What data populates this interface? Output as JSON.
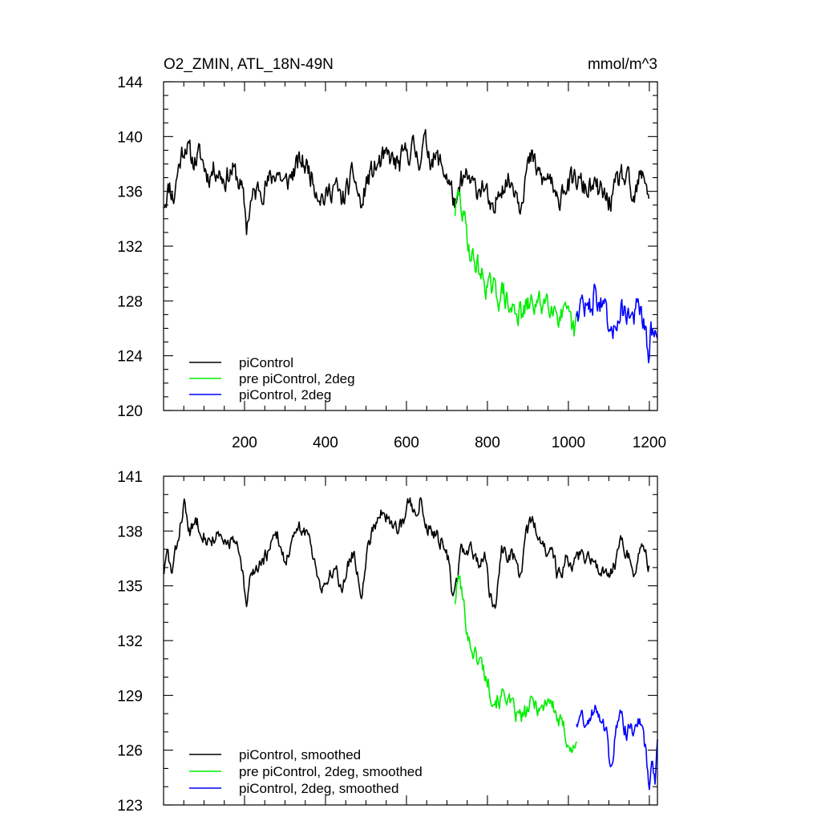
{
  "chart_data": [
    {
      "type": "line",
      "title": "O2_ZMIN, ATL_18N-49N",
      "units": "mmol/m^3",
      "xlim": [
        0,
        1220
      ],
      "ylim": [
        120,
        144
      ],
      "xticks": [
        200,
        400,
        600,
        800,
        1000,
        1200
      ],
      "yticks": [
        120,
        124,
        128,
        132,
        136,
        140,
        144
      ],
      "legend_position": "bottom-left",
      "series": [
        {
          "name": "piControl",
          "color": "#000000",
          "x_start": 1,
          "x_end": 1200,
          "anchors": [
            [
              1,
              135.2
            ],
            [
              15,
              136.5
            ],
            [
              25,
              135.5
            ],
            [
              35,
              137.5
            ],
            [
              45,
              138.8
            ],
            [
              55,
              139.6
            ],
            [
              70,
              138.2
            ],
            [
              90,
              138.6
            ],
            [
              110,
              137.2
            ],
            [
              130,
              137.8
            ],
            [
              150,
              136.9
            ],
            [
              170,
              137.6
            ],
            [
              190,
              136.5
            ],
            [
              200,
              134.8
            ],
            [
              205,
              133.4
            ],
            [
              215,
              135.2
            ],
            [
              235,
              136.2
            ],
            [
              260,
              136.6
            ],
            [
              280,
              137.6
            ],
            [
              300,
              136.4
            ],
            [
              320,
              137.4
            ],
            [
              340,
              138.2
            ],
            [
              360,
              137.6
            ],
            [
              380,
              136.2
            ],
            [
              400,
              135.4
            ],
            [
              420,
              136.6
            ],
            [
              440,
              135.2
            ],
            [
              455,
              136.2
            ],
            [
              470,
              137.2
            ],
            [
              490,
              134.6
            ],
            [
              500,
              136.6
            ],
            [
              520,
              137.6
            ],
            [
              540,
              138.2
            ],
            [
              560,
              138.4
            ],
            [
              580,
              137.8
            ],
            [
              600,
              138.8
            ],
            [
              615,
              139.2
            ],
            [
              630,
              138.4
            ],
            [
              645,
              139.6
            ],
            [
              660,
              138.6
            ],
            [
              680,
              138.2
            ],
            [
              700,
              137.2
            ],
            [
              715,
              135.6
            ],
            [
              725,
              134.6
            ],
            [
              735,
              136.6
            ],
            [
              750,
              136.9
            ],
            [
              770,
              136.1
            ],
            [
              790,
              136.6
            ],
            [
              805,
              134.8
            ],
            [
              815,
              133.8
            ],
            [
              830,
              136.6
            ],
            [
              850,
              136.8
            ],
            [
              870,
              136.4
            ],
            [
              880,
              135.2
            ],
            [
              895,
              137.4
            ],
            [
              910,
              138.4
            ],
            [
              920,
              137.6
            ],
            [
              940,
              136.6
            ],
            [
              955,
              137.2
            ],
            [
              965,
              135.4
            ],
            [
              975,
              134.8
            ],
            [
              985,
              136.6
            ],
            [
              1000,
              136.4
            ],
            [
              1020,
              136.8
            ],
            [
              1040,
              136.2
            ],
            [
              1060,
              136.2
            ],
            [
              1080,
              135.9
            ],
            [
              1100,
              135.2
            ],
            [
              1110,
              135.6
            ],
            [
              1130,
              137.2
            ],
            [
              1150,
              136.4
            ],
            [
              1160,
              134.8
            ],
            [
              1175,
              136.8
            ],
            [
              1190,
              137.1
            ],
            [
              1200,
              135.6
            ]
          ],
          "noise": 0.75,
          "seed": 11
        },
        {
          "name": "pre piControl, 2deg",
          "color": "#00ee00",
          "x_start": 720,
          "x_end": 1020,
          "anchors": [
            [
              720,
              134.6
            ],
            [
              730,
              135.6
            ],
            [
              740,
              134.2
            ],
            [
              750,
              132.8
            ],
            [
              760,
              131.2
            ],
            [
              775,
              130.6
            ],
            [
              790,
              129.6
            ],
            [
              810,
              128.7
            ],
            [
              825,
              128.4
            ],
            [
              840,
              128.6
            ],
            [
              855,
              127.2
            ],
            [
              870,
              127.5
            ],
            [
              885,
              126.9
            ],
            [
              900,
              127.5
            ],
            [
              915,
              127.9
            ],
            [
              930,
              127.6
            ],
            [
              945,
              128.3
            ],
            [
              960,
              128.0
            ],
            [
              975,
              127.1
            ],
            [
              990,
              126.7
            ],
            [
              1005,
              126.3
            ],
            [
              1015,
              125.4
            ],
            [
              1020,
              126.6
            ]
          ],
          "noise": 0.8,
          "seed": 29
        },
        {
          "name": "piControl, 2deg",
          "color": "#0000ff",
          "x_start": 1020,
          "x_end": 1220,
          "anchors": [
            [
              1020,
              127.3
            ],
            [
              1035,
              127.9
            ],
            [
              1050,
              127.2
            ],
            [
              1065,
              128.5
            ],
            [
              1080,
              127.8
            ],
            [
              1095,
              126.5
            ],
            [
              1105,
              124.5
            ],
            [
              1115,
              126.5
            ],
            [
              1130,
              127.5
            ],
            [
              1145,
              127.2
            ],
            [
              1160,
              126.8
            ],
            [
              1170,
              127.4
            ],
            [
              1180,
              127.0
            ],
            [
              1190,
              125.5
            ],
            [
              1198,
              123.5
            ],
            [
              1205,
              126.0
            ],
            [
              1212,
              125.0
            ],
            [
              1220,
              126.0
            ]
          ],
          "noise": 0.85,
          "seed": 47
        }
      ]
    },
    {
      "type": "line",
      "title": "",
      "xlim": [
        0,
        1220
      ],
      "ylim": [
        123,
        141
      ],
      "yticks": [
        123,
        126,
        129,
        132,
        135,
        138,
        141
      ],
      "legend_position": "bottom-left",
      "series": [
        {
          "name": "piControl, smoothed",
          "color": "#000000",
          "x_start": 1,
          "x_end": 1200,
          "anchors": [
            [
              1,
              135.8
            ],
            [
              10,
              136.8
            ],
            [
              20,
              135.6
            ],
            [
              35,
              137.4
            ],
            [
              50,
              139.6
            ],
            [
              65,
              137.8
            ],
            [
              80,
              138.6
            ],
            [
              95,
              138.2
            ],
            [
              110,
              137.4
            ],
            [
              130,
              137.8
            ],
            [
              150,
              137.2
            ],
            [
              170,
              137.6
            ],
            [
              185,
              136.8
            ],
            [
              195,
              135.6
            ],
            [
              205,
              133.6
            ],
            [
              215,
              135.6
            ],
            [
              235,
              136.2
            ],
            [
              260,
              136.8
            ],
            [
              280,
              137.8
            ],
            [
              300,
              136.4
            ],
            [
              320,
              137.4
            ],
            [
              340,
              138.2
            ],
            [
              360,
              137.6
            ],
            [
              380,
              135.8
            ],
            [
              390,
              135.0
            ],
            [
              410,
              135.4
            ],
            [
              425,
              136.2
            ],
            [
              440,
              134.8
            ],
            [
              455,
              136.2
            ],
            [
              470,
              136.8
            ],
            [
              490,
              134.6
            ],
            [
              505,
              137.2
            ],
            [
              520,
              138.4
            ],
            [
              540,
              139.2
            ],
            [
              555,
              138.6
            ],
            [
              570,
              138.2
            ],
            [
              590,
              138.4
            ],
            [
              605,
              139.6
            ],
            [
              620,
              139.0
            ],
            [
              635,
              139.8
            ],
            [
              650,
              138.4
            ],
            [
              670,
              137.8
            ],
            [
              690,
              137.4
            ],
            [
              705,
              136.2
            ],
            [
              715,
              134.4
            ],
            [
              725,
              135.2
            ],
            [
              735,
              137.0
            ],
            [
              760,
              136.8
            ],
            [
              780,
              136.4
            ],
            [
              795,
              136.6
            ],
            [
              805,
              134.8
            ],
            [
              820,
              134.0
            ],
            [
              835,
              136.8
            ],
            [
              850,
              136.8
            ],
            [
              870,
              136.4
            ],
            [
              880,
              135.4
            ],
            [
              895,
              137.6
            ],
            [
              910,
              138.6
            ],
            [
              925,
              137.8
            ],
            [
              945,
              136.8
            ],
            [
              960,
              137.4
            ],
            [
              970,
              135.8
            ],
            [
              980,
              135.4
            ],
            [
              995,
              136.6
            ],
            [
              1010,
              136.2
            ],
            [
              1030,
              136.8
            ],
            [
              1050,
              136.6
            ],
            [
              1070,
              136.2
            ],
            [
              1085,
              136.0
            ],
            [
              1100,
              135.2
            ],
            [
              1110,
              135.8
            ],
            [
              1130,
              137.4
            ],
            [
              1150,
              136.4
            ],
            [
              1160,
              135.0
            ],
            [
              1175,
              136.8
            ],
            [
              1190,
              137.0
            ],
            [
              1200,
              136.0
            ]
          ],
          "noise": 0.35,
          "seed": 83
        },
        {
          "name": "pre piControl, 2deg, smoothed",
          "color": "#00ee00",
          "x_start": 720,
          "x_end": 1020,
          "anchors": [
            [
              720,
              134.2
            ],
            [
              730,
              135.6
            ],
            [
              742,
              133.8
            ],
            [
              755,
              132.0
            ],
            [
              770,
              131.2
            ],
            [
              785,
              130.8
            ],
            [
              800,
              129.8
            ],
            [
              815,
              128.9
            ],
            [
              830,
              128.8
            ],
            [
              845,
              129.2
            ],
            [
              860,
              128.2
            ],
            [
              875,
              127.8
            ],
            [
              890,
              127.8
            ],
            [
              905,
              128.4
            ],
            [
              920,
              128.6
            ],
            [
              935,
              128.2
            ],
            [
              950,
              129.0
            ],
            [
              960,
              128.5
            ],
            [
              975,
              127.6
            ],
            [
              990,
              127.0
            ],
            [
              1000,
              126.6
            ],
            [
              1010,
              125.8
            ],
            [
              1020,
              126.8
            ]
          ],
          "noise": 0.45,
          "seed": 101
        },
        {
          "name": "piControl, 2deg, smoothed",
          "color": "#0000ff",
          "x_start": 1020,
          "x_end": 1220,
          "anchors": [
            [
              1020,
              127.6
            ],
            [
              1035,
              127.9
            ],
            [
              1050,
              127.2
            ],
            [
              1065,
              128.6
            ],
            [
              1080,
              128.0
            ],
            [
              1095,
              126.8
            ],
            [
              1105,
              124.5
            ],
            [
              1115,
              127.0
            ],
            [
              1130,
              127.8
            ],
            [
              1145,
              127.0
            ],
            [
              1160,
              127.2
            ],
            [
              1170,
              127.8
            ],
            [
              1180,
              127.2
            ],
            [
              1190,
              126.0
            ],
            [
              1200,
              124.0
            ],
            [
              1208,
              125.2
            ],
            [
              1214,
              124.6
            ],
            [
              1220,
              126.2
            ]
          ],
          "noise": 0.4,
          "seed": 131
        }
      ]
    }
  ]
}
